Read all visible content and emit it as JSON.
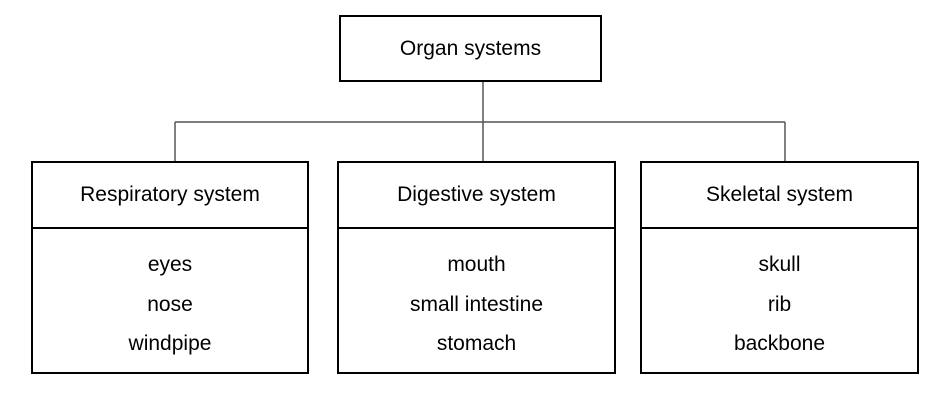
{
  "root": {
    "label": "Organ systems"
  },
  "systems": [
    {
      "title": "Respiratory system",
      "items": [
        "eyes",
        "nose",
        "windpipe"
      ]
    },
    {
      "title": "Digestive system",
      "items": [
        "mouth",
        "small intestine",
        "stomach"
      ]
    },
    {
      "title": "Skeletal system",
      "items": [
        "skull",
        "rib",
        "backbone"
      ]
    }
  ],
  "colors": {
    "line": "#000000",
    "background": "#ffffff"
  }
}
